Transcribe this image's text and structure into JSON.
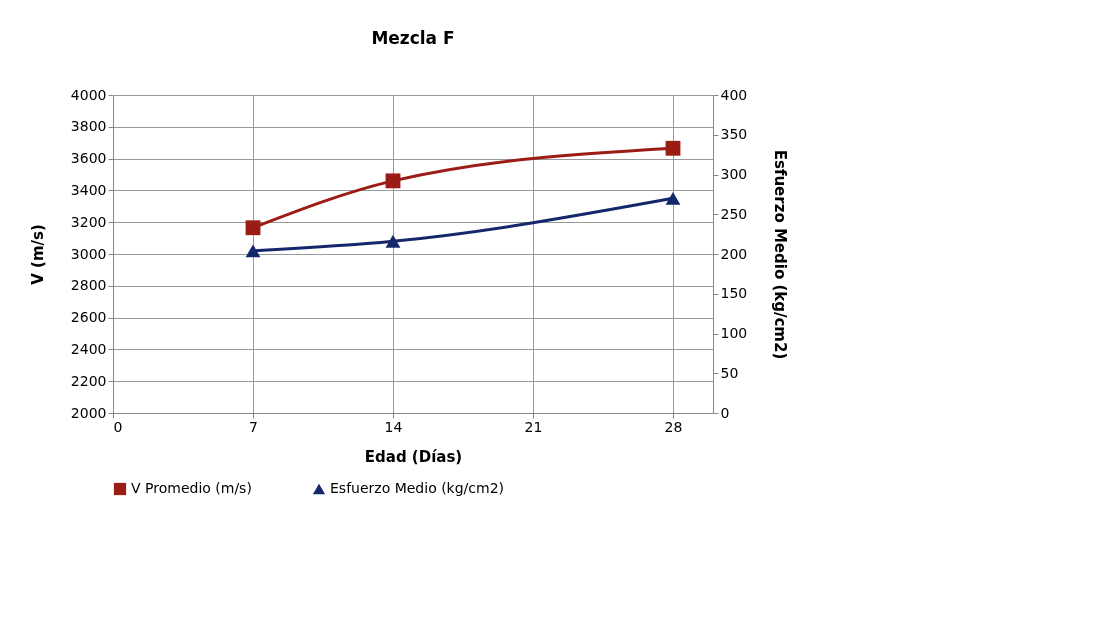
{
  "chart_data": {
    "type": "line",
    "title": "Mezcla F",
    "xlabel": "Edad (Días)",
    "ylabel": "V (m/s)",
    "y2label": "Esfuerzo Medio (kg/cm2)",
    "x": [
      7,
      14,
      28
    ],
    "series": [
      {
        "name": "V Promedio (m/s)",
        "color": "#9b1c14",
        "marker": "square",
        "values": [
          3165,
          3460,
          3665
        ]
      },
      {
        "name": "Esfuerzo Medio (kg/cm2)",
        "color": "#14276b",
        "marker": "triangle",
        "axis": "y2",
        "values": [
          204,
          216,
          270
        ]
      }
    ],
    "xlim": [
      0,
      30
    ],
    "xticks": [
      0,
      7,
      14,
      21,
      28
    ],
    "ylim": [
      2000,
      4000
    ],
    "yticks": [
      2000,
      2200,
      2400,
      2600,
      2800,
      3000,
      3200,
      3400,
      3600,
      3800,
      4000
    ],
    "y2lim": [
      0,
      400
    ],
    "y2ticks": [
      0,
      50,
      100,
      150,
      200,
      250,
      300,
      350,
      400
    ],
    "grid": true,
    "legend": "bottom"
  }
}
